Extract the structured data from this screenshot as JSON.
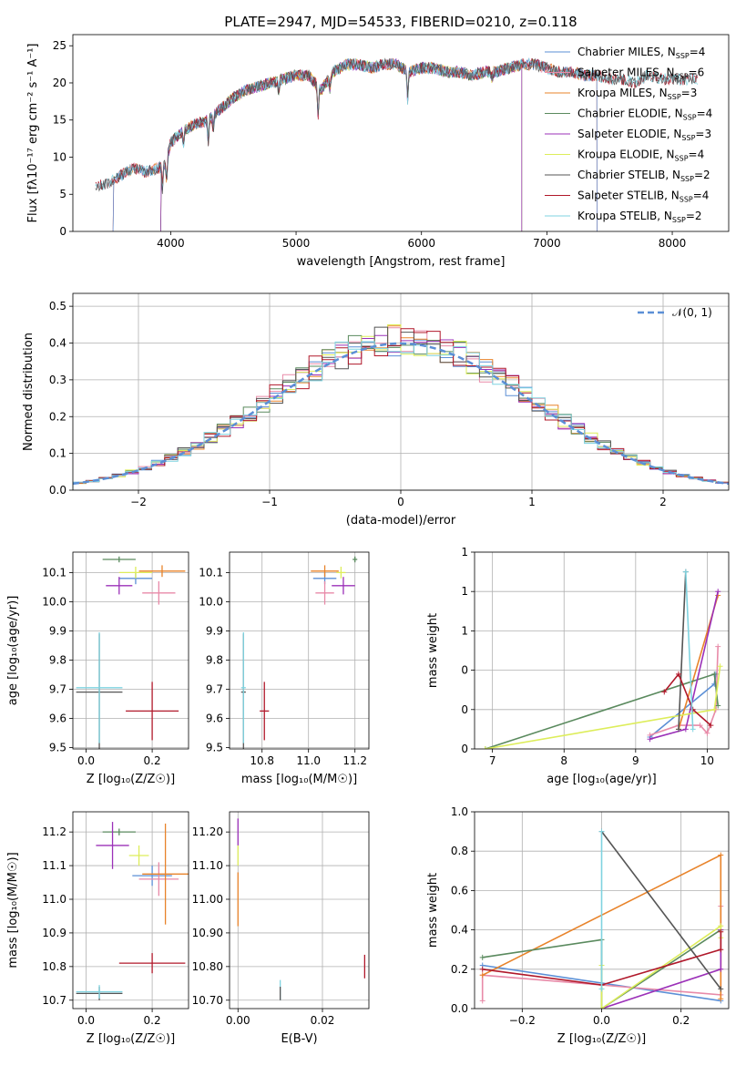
{
  "title": "PLATE=2947, MJD=54533, FIBERID=0210, z=0.118",
  "colors": {
    "Chabrier MILES": "#5b8fd6",
    "Salpeter MILES": "#e88aa8",
    "Kroupa MILES": "#e8832a",
    "Chabrier ELODIE": "#5a8a5e",
    "Salpeter ELODIE": "#9b30b8",
    "Kroupa ELODIE": "#dded5a",
    "Chabrier STELIB": "#555555",
    "Salpeter STELIB": "#b0182a",
    "Kroupa STELIB": "#7fd3e0",
    "normal": "#5b8fd6"
  },
  "chart_data": [
    {
      "type": "line",
      "panel": "spectrum",
      "xlabel": "wavelength [Angstrom, rest frame]",
      "ylabel": "Flux [fλ10⁻¹⁷ erg cm⁻² s⁻¹ A⁻¹]",
      "xlim": [
        3220,
        8450
      ],
      "ylim": [
        0,
        26.5
      ],
      "xticks": [
        4000,
        5000,
        6000,
        7000,
        8000
      ],
      "yticks": [
        0,
        5,
        10,
        15,
        20,
        25
      ],
      "legend_position": "top-right",
      "legend": [
        {
          "name": "Chabrier MILES",
          "label": "Chabrier MILES, N",
          "sub": "SSP",
          "n": "=4"
        },
        {
          "name": "Salpeter MILES",
          "label": "Salpeter MILES, N",
          "sub": "SSP",
          "n": "=6"
        },
        {
          "name": "Kroupa MILES",
          "label": "Kroupa MILES, N",
          "sub": "SSP",
          "n": "=3"
        },
        {
          "name": "Chabrier ELODIE",
          "label": "Chabrier ELODIE, N",
          "sub": "SSP",
          "n": "=4"
        },
        {
          "name": "Salpeter ELODIE",
          "label": "Salpeter ELODIE, N",
          "sub": "SSP",
          "n": "=3"
        },
        {
          "name": "Kroupa ELODIE",
          "label": "Kroupa ELODIE, N",
          "sub": "SSP",
          "n": "=4"
        },
        {
          "name": "Chabrier STELIB",
          "label": "Chabrier STELIB, N",
          "sub": "SSP",
          "n": "=2"
        },
        {
          "name": "Salpeter STELIB",
          "label": "Salpeter STELIB, N",
          "sub": "SSP",
          "n": "=4"
        },
        {
          "name": "Kroupa STELIB",
          "label": "Kroupa STELIB, N",
          "sub": "SSP",
          "n": "=2"
        }
      ],
      "spectrum_points": [
        [
          3400,
          6.0
        ],
        [
          3500,
          6.5
        ],
        [
          3600,
          7.5
        ],
        [
          3700,
          8.5
        ],
        [
          3800,
          8.0
        ],
        [
          3900,
          8.5
        ],
        [
          3960,
          9.0
        ],
        [
          4000,
          12.0
        ],
        [
          4100,
          13.5
        ],
        [
          4200,
          14.5
        ],
        [
          4300,
          15.0
        ],
        [
          4400,
          16.5
        ],
        [
          4500,
          18.0
        ],
        [
          4600,
          19.0
        ],
        [
          4700,
          19.5
        ],
        [
          4800,
          20.0
        ],
        [
          4900,
          20.5
        ],
        [
          5000,
          21.0
        ],
        [
          5100,
          21.0
        ],
        [
          5200,
          19.0
        ],
        [
          5300,
          21.5
        ],
        [
          5400,
          22.5
        ],
        [
          5500,
          22.5
        ],
        [
          5600,
          22.0
        ],
        [
          5700,
          22.5
        ],
        [
          5800,
          22.5
        ],
        [
          5900,
          21.5
        ],
        [
          6000,
          22.0
        ],
        [
          6100,
          22.0
        ],
        [
          6200,
          21.5
        ],
        [
          6300,
          21.5
        ],
        [
          6400,
          21.0
        ],
        [
          6500,
          21.5
        ],
        [
          6600,
          21.5
        ],
        [
          6700,
          22.0
        ],
        [
          6800,
          22.5
        ],
        [
          6900,
          22.5
        ],
        [
          7000,
          22.0
        ],
        [
          7100,
          21.5
        ],
        [
          7200,
          21.5
        ],
        [
          7300,
          21.0
        ],
        [
          7400,
          21.0
        ],
        [
          7500,
          20.5
        ],
        [
          7600,
          20.5
        ],
        [
          7700,
          20.0
        ],
        [
          7800,
          21.0
        ],
        [
          7900,
          20.5
        ],
        [
          8000,
          20.5
        ],
        [
          8100,
          20.5
        ],
        [
          8200,
          20.5
        ]
      ],
      "model_ranges": {
        "Chabrier MILES": [
          3540,
          7400
        ],
        "Salpeter MILES": [
          3540,
          7400
        ],
        "Kroupa MILES": [
          3540,
          7400
        ],
        "Chabrier ELODIE": [
          3920,
          6800
        ],
        "Salpeter ELODIE": [
          3920,
          6800
        ],
        "Kroupa ELODIE": [
          3920,
          6800
        ],
        "Chabrier STELIB": [
          3400,
          8200
        ],
        "Salpeter STELIB": [
          3400,
          8200
        ],
        "Kroupa STELIB": [
          3400,
          8200
        ]
      }
    },
    {
      "type": "histogram",
      "panel": "residuals",
      "xlabel": "(data-model)/error",
      "ylabel": "Normed distribution",
      "xlim": [
        -2.5,
        2.5
      ],
      "ylim": [
        0,
        0.535
      ],
      "xticks": [
        -2,
        -1,
        0,
        1,
        2
      ],
      "yticks": [
        0.0,
        0.1,
        0.2,
        0.3,
        0.4,
        0.5
      ],
      "grid": true,
      "legend_position": "top-right",
      "reference_curve": {
        "label": "𝒩(0, 1)",
        "mean": 0,
        "sigma": 1
      },
      "bin_width": 0.1,
      "bin_range": [
        -2.5,
        2.5
      ]
    },
    {
      "type": "scatter",
      "panel": "Z-age",
      "xlabel": "Z [log₁₀(Z/Z☉)]",
      "ylabel": "age  [log₁₀(age/yr)]",
      "xlim": [
        -0.04,
        0.31
      ],
      "ylim": [
        9.495,
        10.17
      ],
      "xticks": [
        0.0,
        0.2
      ],
      "yticks": [
        9.5,
        9.6,
        9.7,
        9.8,
        9.9,
        10.0,
        10.1
      ],
      "grid": true,
      "points": [
        {
          "series": "Chabrier MILES",
          "x": 0.15,
          "y": 10.08,
          "xerr": 0.05,
          "yerr": 0.02
        },
        {
          "series": "Salpeter MILES",
          "x": 0.22,
          "y": 10.03,
          "xerr": 0.05,
          "yerr": 0.04
        },
        {
          "series": "Kroupa MILES",
          "x": 0.23,
          "y": 10.105,
          "xerr": 0.07,
          "yerr": 0.02
        },
        {
          "series": "Chabrier ELODIE",
          "x": 0.1,
          "y": 10.145,
          "xerr": 0.05,
          "yerr": 0.01
        },
        {
          "series": "Salpeter ELODIE",
          "x": 0.1,
          "y": 10.055,
          "xerr": 0.04,
          "yerr": 0.03
        },
        {
          "series": "Kroupa ELODIE",
          "x": 0.15,
          "y": 10.1,
          "xerr": 0.05,
          "yerr": 0.02
        },
        {
          "series": "Chabrier STELIB",
          "x": 0.04,
          "y": 9.69,
          "xerr": 0.07,
          "yerr": 0.2
        },
        {
          "series": "Salpeter STELIB",
          "x": 0.2,
          "y": 9.625,
          "xerr": 0.08,
          "yerr": 0.1
        },
        {
          "series": "Kroupa STELIB",
          "x": 0.04,
          "y": 9.705,
          "xerr": 0.07,
          "yerr": 0.19
        }
      ]
    },
    {
      "type": "scatter",
      "panel": "mass-age",
      "xlabel": "mass [log₁₀(M/M☉)]",
      "ylabel": "",
      "xlim": [
        10.66,
        11.26
      ],
      "ylim": [
        9.495,
        10.17
      ],
      "xticks": [
        10.8,
        11.0,
        11.2
      ],
      "yticks": [
        9.5,
        9.6,
        9.7,
        9.8,
        9.9,
        10.0,
        10.1
      ],
      "grid": true,
      "points": [
        {
          "series": "Chabrier MILES",
          "x": 11.07,
          "y": 10.08,
          "xerr": 0.05,
          "yerr": 0.02
        },
        {
          "series": "Salpeter MILES",
          "x": 11.07,
          "y": 10.03,
          "xerr": 0.04,
          "yerr": 0.04
        },
        {
          "series": "Kroupa MILES",
          "x": 11.07,
          "y": 10.105,
          "xerr": 0.06,
          "yerr": 0.02
        },
        {
          "series": "Chabrier ELODIE",
          "x": 11.2,
          "y": 10.145,
          "xerr": 0.01,
          "yerr": 0.01
        },
        {
          "series": "Salpeter ELODIE",
          "x": 11.15,
          "y": 10.055,
          "xerr": 0.05,
          "yerr": 0.03
        },
        {
          "series": "Kroupa ELODIE",
          "x": 11.14,
          "y": 10.1,
          "xerr": 0.02,
          "yerr": 0.02
        },
        {
          "series": "Chabrier STELIB",
          "x": 10.72,
          "y": 9.69,
          "xerr": 0.01,
          "yerr": 0.2
        },
        {
          "series": "Salpeter STELIB",
          "x": 10.81,
          "y": 9.625,
          "xerr": 0.02,
          "yerr": 0.1
        },
        {
          "series": "Kroupa STELIB",
          "x": 10.72,
          "y": 9.705,
          "xerr": 0.01,
          "yerr": 0.19
        }
      ]
    },
    {
      "type": "line",
      "panel": "age-massweight",
      "xlabel": "age  [log₁₀(age/yr)]",
      "ylabel": "mass weight",
      "xlim": [
        6.75,
        10.3
      ],
      "ylim": [
        0,
        1.0
      ],
      "xticks": [
        7,
        8,
        9,
        10
      ],
      "yticks": [
        0.0,
        0.2,
        0.4,
        0.6,
        0.8,
        1.0
      ],
      "grid": true,
      "series": [
        {
          "name": "Chabrier MILES",
          "x": [
            9.2,
            10.1,
            10.12
          ],
          "y": [
            0.06,
            0.33,
            0.38
          ]
        },
        {
          "name": "Salpeter MILES",
          "x": [
            9.2,
            9.6,
            9.9,
            10.0,
            10.12,
            10.15
          ],
          "y": [
            0.07,
            0.12,
            0.12,
            0.08,
            0.2,
            0.52
          ]
        },
        {
          "name": "Kroupa MILES",
          "x": [
            9.6,
            10.15
          ],
          "y": [
            0.1,
            0.78
          ]
        },
        {
          "name": "Chabrier ELODIE",
          "x": [
            6.9,
            10.1,
            10.15
          ],
          "y": [
            0.0,
            0.38,
            0.22
          ]
        },
        {
          "name": "Salpeter ELODIE",
          "x": [
            9.2,
            9.7,
            10.15
          ],
          "y": [
            0.05,
            0.1,
            0.8
          ]
        },
        {
          "name": "Kroupa ELODIE",
          "x": [
            6.9,
            10.1,
            10.18
          ],
          "y": [
            0.0,
            0.2,
            0.42
          ]
        },
        {
          "name": "Chabrier STELIB",
          "x": [
            9.6,
            9.7
          ],
          "y": [
            0.1,
            0.9
          ]
        },
        {
          "name": "Salpeter STELIB",
          "x": [
            9.4,
            9.6,
            9.8,
            10.05
          ],
          "y": [
            0.29,
            0.38,
            0.2,
            0.12
          ]
        },
        {
          "name": "Kroupa STELIB",
          "x": [
            9.7,
            9.8
          ],
          "y": [
            0.9,
            0.1
          ]
        }
      ]
    },
    {
      "type": "scatter",
      "panel": "Z-mass",
      "xlabel": "Z [log₁₀(Z/Z☉)]",
      "ylabel": "mass [log₁₀(M/M☉)]",
      "xlim": [
        -0.04,
        0.31
      ],
      "ylim": [
        10.675,
        11.26
      ],
      "xticks": [
        0.0,
        0.2
      ],
      "yticks": [
        10.7,
        10.8,
        10.9,
        11.0,
        11.1,
        11.2
      ],
      "grid": true,
      "points": [
        {
          "series": "Chabrier MILES",
          "x": 0.2,
          "y": 11.07,
          "xerr": 0.06,
          "yerr": 0.03
        },
        {
          "series": "Salpeter MILES",
          "x": 0.22,
          "y": 11.06,
          "xerr": 0.06,
          "yerr": 0.05
        },
        {
          "series": "Kroupa MILES",
          "x": 0.24,
          "y": 11.075,
          "xerr": 0.07,
          "yerr": 0.15
        },
        {
          "series": "Chabrier ELODIE",
          "x": 0.1,
          "y": 11.2,
          "xerr": 0.05,
          "yerr": 0.01
        },
        {
          "series": "Salpeter ELODIE",
          "x": 0.08,
          "y": 11.16,
          "xerr": 0.05,
          "yerr": 0.07
        },
        {
          "series": "Kroupa ELODIE",
          "x": 0.16,
          "y": 11.13,
          "xerr": 0.03,
          "yerr": 0.03
        },
        {
          "series": "Chabrier STELIB",
          "x": 0.04,
          "y": 10.72,
          "xerr": 0.07,
          "yerr": 0.02
        },
        {
          "series": "Salpeter STELIB",
          "x": 0.2,
          "y": 10.81,
          "xerr": 0.1,
          "yerr": 0.03
        },
        {
          "series": "Kroupa STELIB",
          "x": 0.04,
          "y": 10.725,
          "xerr": 0.07,
          "yerr": 0.02
        }
      ]
    },
    {
      "type": "scatter",
      "panel": "ebv-mass",
      "xlabel": "E(B-V)",
      "ylabel": "",
      "xlim": [
        -0.002,
        0.031
      ],
      "ylim": [
        10.675,
        11.26
      ],
      "xticks": [
        0.0,
        0.02
      ],
      "yticks": [
        10.7,
        10.8,
        10.9,
        11.0,
        11.1,
        11.2
      ],
      "grid": true,
      "points": [
        {
          "series": "Kroupa MILES",
          "x": 0.0,
          "y": 11.0,
          "xerr": 0,
          "yerr": 0.08
        },
        {
          "series": "Salpeter ELODIE",
          "x": 0.0,
          "y": 11.2,
          "xerr": 0,
          "yerr": 0.04
        },
        {
          "series": "Kroupa ELODIE",
          "x": 0.0,
          "y": 11.13,
          "xerr": 0,
          "yerr": 0.03
        },
        {
          "series": "Kroupa STELIB",
          "x": 0.01,
          "y": 10.73,
          "xerr": 0,
          "yerr": 0.03
        },
        {
          "series": "Chabrier STELIB",
          "x": 0.01,
          "y": 10.72,
          "xerr": 0,
          "yerr": 0.02
        },
        {
          "series": "Salpeter STELIB",
          "x": 0.03,
          "y": 10.8,
          "xerr": 0,
          "yerr": 0.035
        }
      ]
    },
    {
      "type": "line",
      "panel": "Z-massweight",
      "xlabel": "Z [log₁₀(Z/Z☉)]",
      "ylabel": "mass weight",
      "xlim": [
        -0.32,
        0.32
      ],
      "ylim": [
        0,
        1.0
      ],
      "xticks": [
        -0.2,
        0.0,
        0.2
      ],
      "yticks": [
        0.0,
        0.2,
        0.4,
        0.6,
        0.8,
        1.0
      ],
      "grid": true,
      "series": [
        {
          "name": "Chabrier MILES",
          "x": [
            -0.3,
            0.3
          ],
          "y": [
            0.22,
            0.04
          ]
        },
        {
          "name": "Salpeter MILES",
          "x": [
            -0.3,
            -0.3,
            0.3,
            0.3
          ],
          "y": [
            0.04,
            0.17,
            0.07,
            0.52
          ]
        },
        {
          "name": "Kroupa MILES",
          "x": [
            -0.3,
            0.3,
            0.3
          ],
          "y": [
            0.17,
            0.78,
            0.05
          ]
        },
        {
          "name": "Chabrier ELODIE",
          "x": [
            -0.3,
            0.0,
            0.0,
            0.3
          ],
          "y": [
            0.26,
            0.35,
            0.0,
            0.4
          ]
        },
        {
          "name": "Salpeter ELODIE",
          "x": [
            0.0,
            0.3,
            0.3
          ],
          "y": [
            0.0,
            0.2,
            0.4
          ]
        },
        {
          "name": "Kroupa ELODIE",
          "x": [
            0.0,
            0.0,
            0.3,
            0.3
          ],
          "y": [
            0.22,
            0.0,
            0.42,
            0.36
          ]
        },
        {
          "name": "Chabrier STELIB",
          "x": [
            0.0,
            0.3
          ],
          "y": [
            0.9,
            0.1
          ]
        },
        {
          "name": "Salpeter STELIB",
          "x": [
            -0.3,
            0.0,
            0.3,
            0.3
          ],
          "y": [
            0.2,
            0.12,
            0.3,
            0.39
          ]
        },
        {
          "name": "Kroupa STELIB",
          "x": [
            0.0,
            0.0
          ],
          "y": [
            0.1,
            0.9
          ]
        }
      ]
    }
  ]
}
